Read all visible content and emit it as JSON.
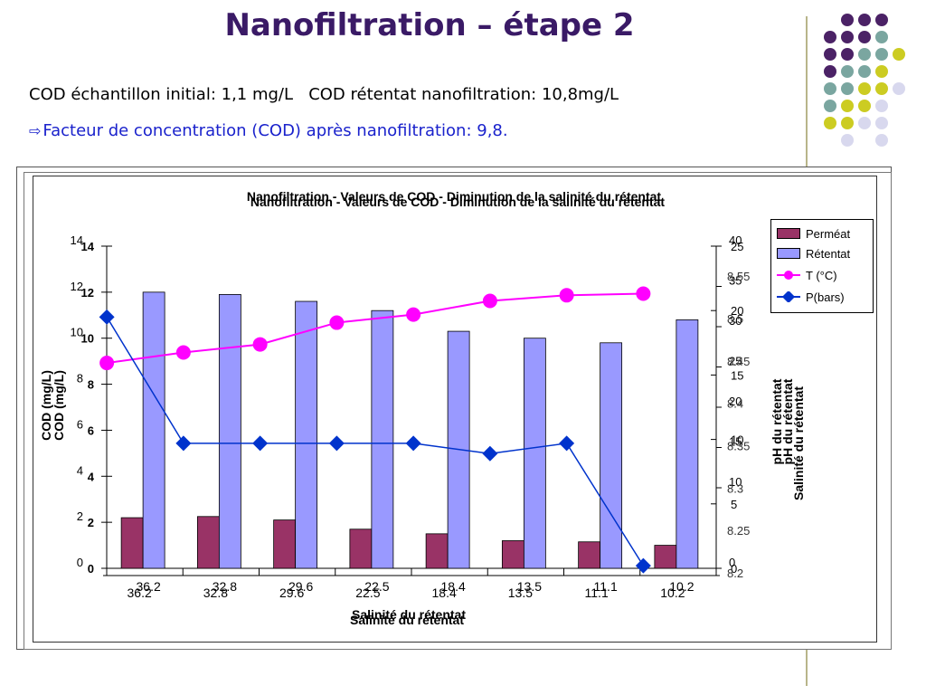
{
  "slide": {
    "title": "Nanofiltration – étape 2",
    "line1": "COD échantillon initial: 1,1 mg/L   COD rétentat nanofiltration: 10,8mg/L",
    "line2_arrow": "⇨",
    "line2": "Facteur de concentration (COD) après nanofiltration: 9,8."
  },
  "colors": {
    "title": "#3a1a66",
    "permeat": "#993366",
    "retentat": "#9999ff",
    "temperature": "#ff00ff",
    "pressure": "#0033cc",
    "dot_purple": "#4b2266",
    "dot_teal": "#7aa6a0",
    "dot_yellow": "#cccc22",
    "dot_lavender": "#d8d8ee"
  },
  "chart_data": {
    "type": "bar",
    "title": "Nanofiltration - Valeurs de COD - Diminution de la salinité du rétentat",
    "xlabel": "Salinité du rétentat",
    "ylabel": "COD (mg/L)",
    "y2label": "pH du rétentat",
    "y3label": "Salinité du rétentat",
    "categories": [
      "36.2",
      "32.8",
      "29.6",
      "22.5",
      "18.4",
      "13.5",
      "11.1",
      "10.2"
    ],
    "ylim": [
      0,
      14
    ],
    "yticks": [
      "0",
      "2",
      "4",
      "6",
      "8",
      "10",
      "12",
      "14"
    ],
    "y2lim": [
      0,
      25
    ],
    "y2ticks": [
      "0",
      "5",
      "10",
      "15",
      "20",
      "25"
    ],
    "y3lim": [
      0,
      40
    ],
    "y3ticks": [
      "0",
      "10",
      "15",
      "20",
      "25",
      "30",
      "35",
      "40"
    ],
    "ghost_ticks": [
      "8.2",
      "8.25",
      "8.3",
      "8.35",
      "8.4",
      "8.45",
      "8.5",
      "8.55"
    ],
    "series": [
      {
        "name": "Perméat",
        "type": "bar",
        "axis": "left",
        "values": [
          2.2,
          2.25,
          2.1,
          1.7,
          1.5,
          1.2,
          1.15,
          1.0
        ]
      },
      {
        "name": "Rétentat",
        "type": "bar",
        "axis": "left",
        "values": [
          12.0,
          11.9,
          11.6,
          11.2,
          10.3,
          10.0,
          9.8,
          10.8
        ]
      },
      {
        "name": "T (°C)",
        "type": "line",
        "axis": "right-temperature",
        "values": [
          25.5,
          26.8,
          27.8,
          30.5,
          31.5,
          33.2,
          33.9,
          34.1
        ]
      },
      {
        "name": "P(bars)",
        "type": "line",
        "axis": "right-pressure",
        "values": [
          19.5,
          9.7,
          9.7,
          9.7,
          9.7,
          8.9,
          9.7,
          0.2
        ]
      }
    ],
    "legend_position": "top-right",
    "grid": false
  }
}
